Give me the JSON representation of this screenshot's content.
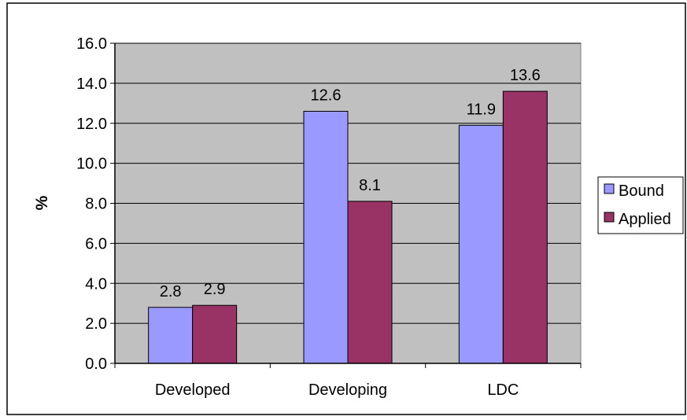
{
  "chart_data": {
    "type": "bar",
    "title": "",
    "xlabel": "",
    "ylabel": "%",
    "categories": [
      "Developed",
      "Developing",
      "LDC"
    ],
    "series": [
      {
        "name": "Bound",
        "values": [
          2.8,
          12.6,
          11.9
        ],
        "color": "#9999ff"
      },
      {
        "name": "Applied",
        "values": [
          2.9,
          8.1,
          13.6
        ],
        "color": "#993366"
      }
    ],
    "ylim": [
      0,
      16
    ],
    "yticks": [
      "0.0",
      "2.0",
      "4.0",
      "6.0",
      "8.0",
      "10.0",
      "12.0",
      "14.0",
      "16.0"
    ],
    "data_labels": [
      [
        "2.8",
        "12.6",
        "11.9"
      ],
      [
        "2.9",
        "8.1",
        "13.6"
      ]
    ],
    "grid": true,
    "plot_background": "#c0c0c0",
    "legend": "right"
  }
}
